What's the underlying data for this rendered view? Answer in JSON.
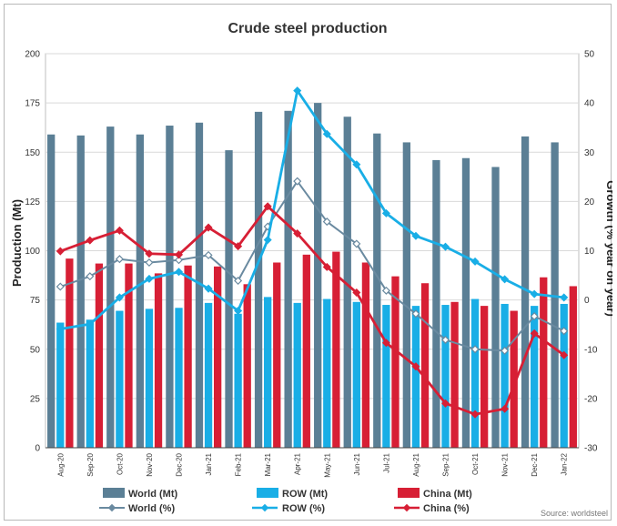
{
  "chart_data": {
    "type": "bar+line",
    "title": "Crude steel production",
    "ylabel": "Production (Mt)",
    "y2label": "Growth (% year on year)",
    "ylim": [
      0,
      200
    ],
    "y2lim": [
      -30,
      50
    ],
    "yticks": [
      "0",
      "25",
      "50",
      "75",
      "100",
      "125",
      "150",
      "175",
      "200"
    ],
    "y2ticks": [
      "-30",
      "-20",
      "-10",
      "0",
      "10",
      "20",
      "30",
      "40",
      "50"
    ],
    "categories": [
      "Aug-20",
      "Sep-20",
      "Oct-20",
      "Nov-20",
      "Dec-20",
      "Jan-21",
      "Feb-21",
      "Mar-21",
      "Apr-21",
      "May-21",
      "Jun-21",
      "Jul-21",
      "Aug-21",
      "Sep-21",
      "Oct-21",
      "Nov-21",
      "Dec-21",
      "Jan-22"
    ],
    "bar_series": [
      {
        "name": "World (Mt)",
        "color": "#5b7f95",
        "values": [
          159,
          158.5,
          163,
          159,
          163.5,
          165,
          151,
          170.5,
          171,
          175,
          168,
          159.5,
          155,
          146,
          147,
          142.5,
          158,
          155
        ]
      },
      {
        "name": "ROW (Mt)",
        "color": "#19aee6",
        "values": [
          63.5,
          65,
          69.5,
          70.5,
          71,
          73.5,
          68,
          76.5,
          73.5,
          75.5,
          74,
          72.5,
          72,
          72.5,
          75.5,
          73,
          72,
          73
        ]
      },
      {
        "name": "China (Mt)",
        "color": "#d71f35",
        "values": [
          96,
          93.5,
          93.5,
          88.5,
          92.5,
          92,
          83,
          94,
          98,
          99.5,
          94,
          87,
          83.5,
          74,
          72,
          69.5,
          86.5,
          82
        ]
      }
    ],
    "line_series": [
      {
        "name": "World (%)",
        "color": "#6a8aa0",
        "values": [
          2.7,
          4.8,
          8.3,
          7.6,
          8.1,
          9.1,
          3.9,
          14.9,
          24.1,
          15.9,
          11.4,
          1.9,
          -2.8,
          -8.1,
          -10,
          -10.3,
          -3.3,
          -6.3
        ]
      },
      {
        "name": "ROW (%)",
        "color": "#19aee6",
        "values": [
          -5.9,
          -4.9,
          0.5,
          4.3,
          5.7,
          2.3,
          -2.2,
          12.2,
          42.5,
          33.7,
          27.5,
          17.6,
          13,
          10.8,
          7.8,
          4.2,
          1.2,
          0.5
        ]
      },
      {
        "name": "China (%)",
        "color": "#d71f35",
        "values": [
          9.9,
          12.1,
          14.1,
          9.4,
          9.2,
          14.7,
          10.9,
          19,
          13.5,
          6.7,
          1.5,
          -8.7,
          -13.5,
          -21,
          -23.2,
          -22.1,
          -6.8,
          -11.2
        ]
      }
    ]
  },
  "legend": {
    "world_mt": "World (Mt)",
    "row_mt": "ROW (Mt)",
    "china_mt": "China (Mt)",
    "world_pct": "World (%)",
    "row_pct": "ROW (%)",
    "china_pct": "China (%)"
  },
  "source": "Source: worldsteel"
}
